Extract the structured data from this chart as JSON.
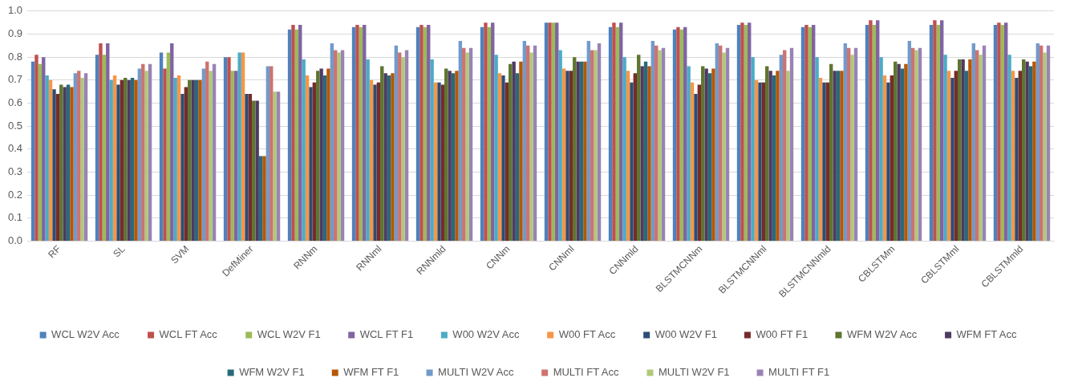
{
  "chart_data": {
    "type": "bar",
    "categories": [
      "RF",
      "SL",
      "SVM",
      "DefMiner",
      "RNNm",
      "RNNml",
      "RNNmld",
      "CNNm",
      "CNNml",
      "CNNmld",
      "BLSTMCNNm",
      "BLSTMCNNml",
      "BLSTMCNNmld",
      "CBLSTMm",
      "CBLSTMml",
      "CBLSTMmld"
    ],
    "series": [
      {
        "name": "WCL W2V Acc",
        "color": "#4f81bd",
        "values": [
          0.78,
          0.81,
          0.82,
          0.8,
          0.92,
          0.93,
          0.93,
          0.93,
          0.95,
          0.93,
          0.92,
          0.94,
          0.93,
          0.94,
          0.94,
          0.94
        ]
      },
      {
        "name": "WCL FT Acc",
        "color": "#c0504d",
        "values": [
          0.81,
          0.86,
          0.75,
          0.8,
          0.94,
          0.94,
          0.94,
          0.95,
          0.95,
          0.95,
          0.93,
          0.95,
          0.94,
          0.96,
          0.96,
          0.95
        ]
      },
      {
        "name": "WCL W2V F1",
        "color": "#9bbb59",
        "values": [
          0.77,
          0.81,
          0.82,
          0.74,
          0.92,
          0.93,
          0.93,
          0.93,
          0.95,
          0.93,
          0.92,
          0.94,
          0.93,
          0.94,
          0.94,
          0.94
        ]
      },
      {
        "name": "WCL FT F1",
        "color": "#8064a2",
        "values": [
          0.8,
          0.86,
          0.86,
          0.74,
          0.94,
          0.94,
          0.94,
          0.95,
          0.95,
          0.95,
          0.93,
          0.95,
          0.94,
          0.96,
          0.96,
          0.95
        ]
      },
      {
        "name": "W00 W2V Acc",
        "color": "#4bacc6",
        "values": [
          0.72,
          0.7,
          0.71,
          0.82,
          0.79,
          0.79,
          0.79,
          0.81,
          0.83,
          0.8,
          0.76,
          0.8,
          0.8,
          0.8,
          0.81,
          0.81
        ]
      },
      {
        "name": "W00 FT Acc",
        "color": "#f79646",
        "values": [
          0.7,
          0.72,
          0.72,
          0.82,
          0.72,
          0.7,
          0.69,
          0.73,
          0.75,
          0.74,
          0.69,
          0.7,
          0.71,
          0.72,
          0.74,
          0.74
        ]
      },
      {
        "name": "W00 W2V F1",
        "color": "#2c4d75",
        "values": [
          0.66,
          0.68,
          0.64,
          0.64,
          0.67,
          0.68,
          0.69,
          0.72,
          0.74,
          0.69,
          0.64,
          0.69,
          0.69,
          0.69,
          0.71,
          0.71
        ]
      },
      {
        "name": "W00 FT F1",
        "color": "#772c2a",
        "values": [
          0.64,
          0.7,
          0.67,
          0.64,
          0.69,
          0.69,
          0.68,
          0.69,
          0.74,
          0.73,
          0.68,
          0.69,
          0.69,
          0.72,
          0.74,
          0.74
        ]
      },
      {
        "name": "WFM W2V Acc",
        "color": "#5f7530",
        "values": [
          0.68,
          0.71,
          0.7,
          0.61,
          0.74,
          0.76,
          0.75,
          0.77,
          0.8,
          0.81,
          0.76,
          0.76,
          0.77,
          0.78,
          0.79,
          0.79
        ]
      },
      {
        "name": "WFM FT Acc",
        "color": "#4d3b62",
        "values": [
          0.67,
          0.7,
          0.7,
          0.61,
          0.75,
          0.73,
          0.74,
          0.78,
          0.78,
          0.76,
          0.75,
          0.74,
          0.74,
          0.77,
          0.79,
          0.78
        ]
      },
      {
        "name": "WFM W2V F1",
        "color": "#276a7c",
        "values": [
          0.68,
          0.71,
          0.7,
          0.37,
          0.72,
          0.72,
          0.73,
          0.73,
          0.78,
          0.78,
          0.73,
          0.72,
          0.74,
          0.75,
          0.74,
          0.76
        ]
      },
      {
        "name": "WFM FT F1",
        "color": "#b65708",
        "values": [
          0.67,
          0.7,
          0.7,
          0.37,
          0.75,
          0.73,
          0.74,
          0.78,
          0.78,
          0.76,
          0.75,
          0.74,
          0.74,
          0.77,
          0.79,
          0.78
        ]
      },
      {
        "name": "MULTI W2V Acc",
        "color": "#729aca",
        "values": [
          0.73,
          0.75,
          0.75,
          0.76,
          0.86,
          0.85,
          0.87,
          0.87,
          0.87,
          0.87,
          0.86,
          0.81,
          0.86,
          0.87,
          0.86,
          0.86
        ]
      },
      {
        "name": "MULTI FT Acc",
        "color": "#cd7371",
        "values": [
          0.74,
          0.77,
          0.78,
          0.76,
          0.83,
          0.82,
          0.84,
          0.85,
          0.83,
          0.85,
          0.85,
          0.83,
          0.84,
          0.84,
          0.83,
          0.85
        ]
      },
      {
        "name": "MULTI W2V F1",
        "color": "#afc97a",
        "values": [
          0.71,
          0.74,
          0.74,
          0.65,
          0.82,
          0.8,
          0.82,
          0.82,
          0.83,
          0.83,
          0.82,
          0.74,
          0.81,
          0.83,
          0.81,
          0.82
        ]
      },
      {
        "name": "MULTI FT F1",
        "color": "#9983b5",
        "values": [
          0.73,
          0.77,
          0.77,
          0.65,
          0.83,
          0.83,
          0.84,
          0.85,
          0.86,
          0.84,
          0.84,
          0.84,
          0.84,
          0.84,
          0.85,
          0.85
        ]
      }
    ],
    "ylim": [
      0,
      1
    ],
    "yticks": [
      {
        "value": 0,
        "label": "0.0"
      },
      {
        "value": 0.1,
        "label": "0.1"
      },
      {
        "value": 0.2,
        "label": "0.2"
      },
      {
        "value": 0.3,
        "label": "0.3"
      },
      {
        "value": 0.4,
        "label": "0.4"
      },
      {
        "value": 0.5,
        "label": "0.5"
      },
      {
        "value": 0.6,
        "label": "0.6"
      },
      {
        "value": 0.7,
        "label": "0.7"
      },
      {
        "value": 0.8,
        "label": "0.8"
      },
      {
        "value": 0.9,
        "label": "0.9"
      },
      {
        "value": 1,
        "label": "1.0"
      }
    ],
    "grid": "y",
    "legend": "bottom"
  }
}
